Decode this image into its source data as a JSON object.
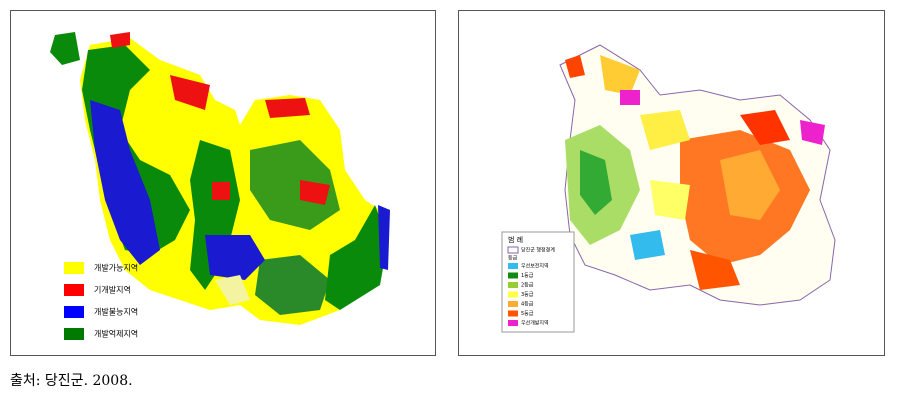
{
  "figures": [
    {
      "legend": [
        {
          "label": "개발가능지역",
          "color": "#ffff00"
        },
        {
          "label": "기개발지역",
          "color": "#ff0000"
        },
        {
          "label": "개발불능지역",
          "color": "#0000ff"
        },
        {
          "label": "개발억제지역",
          "color": "#007a00"
        }
      ]
    },
    {
      "legend_title": "범 례",
      "boundary": "당진군 행정경계",
      "grade_title": "등급",
      "legend": [
        {
          "label": "우선보전지역",
          "color": "#33bbee"
        },
        {
          "label": "1등급",
          "color": "#118811"
        },
        {
          "label": "2등급",
          "color": "#99cc33"
        },
        {
          "label": "3등급",
          "color": "#ffff44"
        },
        {
          "label": "4등급",
          "color": "#ffaa33"
        },
        {
          "label": "5등급",
          "color": "#ff5500"
        },
        {
          "label": "우선개발지역",
          "color": "#ee22cc"
        }
      ]
    }
  ],
  "caption": "출처: 당진군. 2008."
}
